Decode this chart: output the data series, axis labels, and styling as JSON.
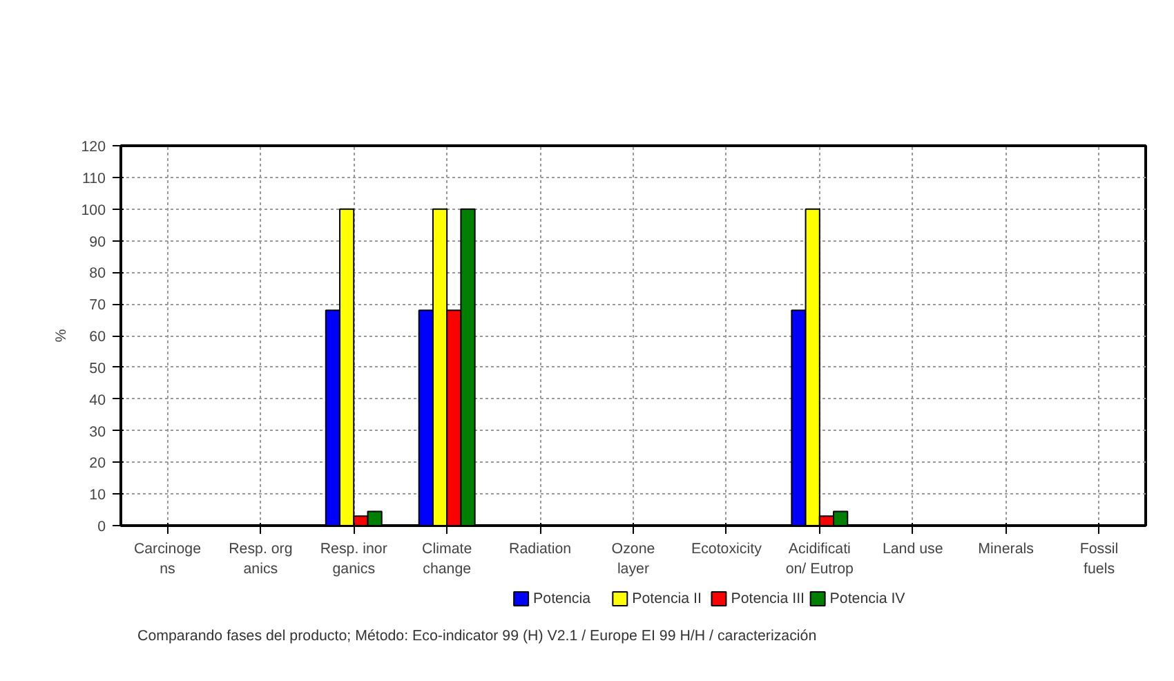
{
  "chart_data": {
    "type": "bar",
    "ylabel": "%",
    "categories": [
      "Carcinoge\nns",
      "Resp. org\nanics",
      "Resp. inor\nganics",
      "Climate\nchange",
      "Radiation",
      "Ozone\nlayer",
      "Ecotoxicity",
      "Acidificati\non/ Eutrop",
      "Land use",
      "Minerals",
      "Fossil\nfuels"
    ],
    "series": [
      {
        "name": "Potencia",
        "color": "#0000ff",
        "values": [
          null,
          null,
          68,
          68,
          null,
          null,
          null,
          68,
          null,
          null,
          null
        ]
      },
      {
        "name": "Potencia II",
        "color": "#ffff00",
        "values": [
          null,
          null,
          100,
          100,
          null,
          null,
          null,
          100,
          null,
          null,
          null
        ]
      },
      {
        "name": "Potencia III",
        "color": "#ff0000",
        "values": [
          null,
          null,
          3,
          68,
          null,
          null,
          null,
          3,
          null,
          null,
          null
        ]
      },
      {
        "name": "Potencia IV",
        "color": "#008000",
        "values": [
          null,
          null,
          4.5,
          100,
          null,
          null,
          null,
          4.5,
          null,
          null,
          null
        ]
      }
    ],
    "ylim": [
      0,
      120
    ],
    "yticks": [
      0,
      10,
      20,
      30,
      40,
      50,
      60,
      70,
      80,
      90,
      100,
      110,
      120
    ],
    "grid": true,
    "legend": "bottom",
    "annotations": [
      "Comparando fases del producto; Método: Eco-indicator 99 (H) V2.1 / Europe EI 99 H/H / caracterización"
    ]
  }
}
